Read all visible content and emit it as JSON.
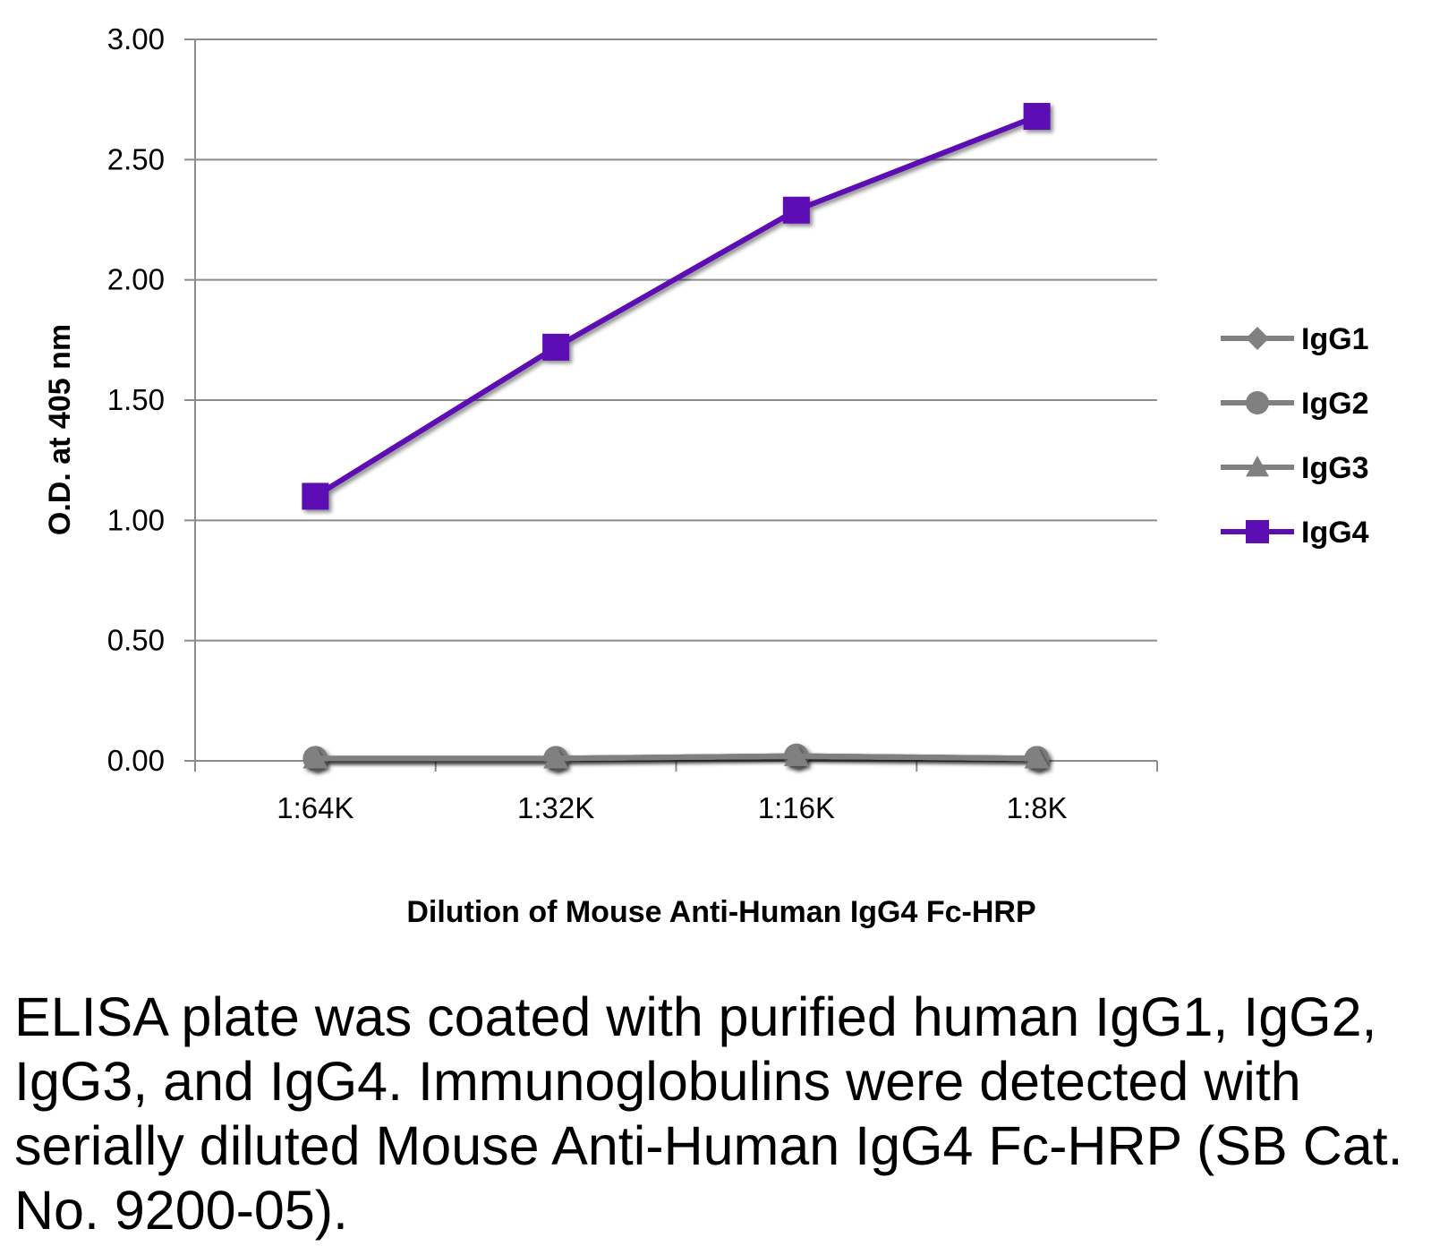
{
  "chart_data": {
    "type": "line",
    "title": "",
    "xlabel": "Dilution of Mouse Anti-Human IgG4 Fc-HRP",
    "ylabel": "O.D. at 405 nm",
    "categories": [
      "1:64K",
      "1:32K",
      "1:16K",
      "1:8K"
    ],
    "ylim": [
      0,
      3
    ],
    "yticks": [
      0,
      0.5,
      1,
      1.5,
      2,
      2.5,
      3
    ],
    "ytick_labels": [
      "0.00",
      "0.50",
      "1.00",
      "1.50",
      "2.00",
      "2.50",
      "3.00"
    ],
    "grid": true,
    "legend_position": "right",
    "series": [
      {
        "name": "IgG1",
        "marker": "diamond",
        "color": "#808080",
        "values": [
          0.01,
          0.01,
          0.02,
          0.01
        ]
      },
      {
        "name": "IgG2",
        "marker": "circle",
        "color": "#808080",
        "values": [
          0.01,
          0.01,
          0.02,
          0.01
        ]
      },
      {
        "name": "IgG3",
        "marker": "triangle",
        "color": "#808080",
        "values": [
          0.01,
          0.01,
          0.02,
          0.01
        ]
      },
      {
        "name": "IgG4",
        "marker": "square",
        "color": "#5b0fb3",
        "values": [
          1.1,
          1.72,
          2.29,
          2.68
        ]
      }
    ]
  },
  "caption": "ELISA plate was coated with purified human IgG1, IgG2, IgG3, and IgG4.  Immunoglobulins were detected with serially diluted Mouse Anti-Human IgG4 Fc-HRP (SB Cat. No. 9200-05)."
}
